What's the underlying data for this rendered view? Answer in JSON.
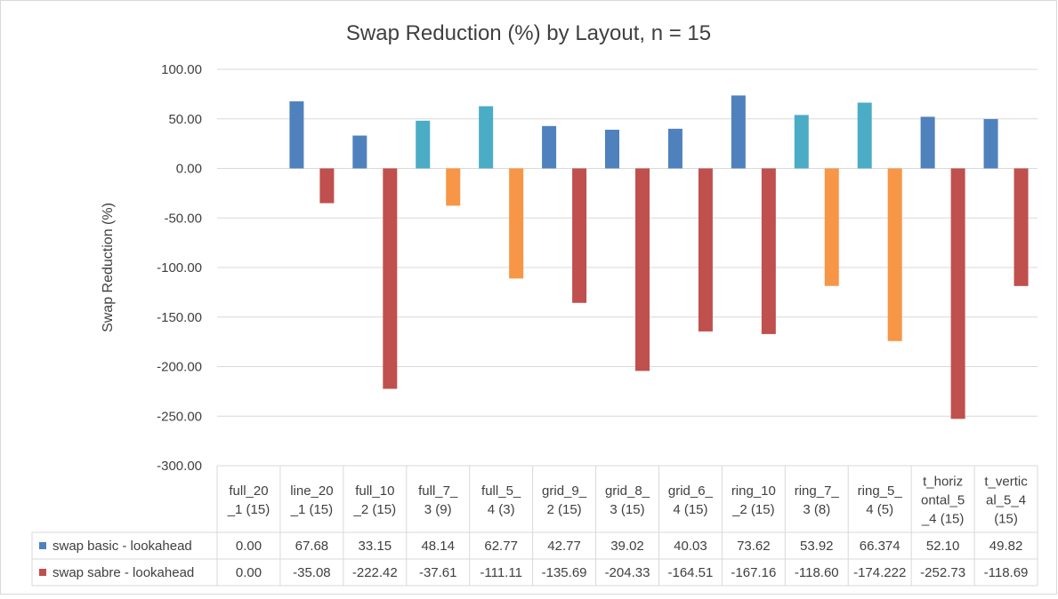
{
  "chart_data": {
    "type": "bar",
    "title": "Swap Reduction (%) by Layout, n = 15",
    "ylabel": "Swap Reduction (%)",
    "xlabel": "",
    "ylim": [
      -300,
      100
    ],
    "ytick_step": 50,
    "ytick_labels": [
      "100.00",
      "50.00",
      "0.00",
      "-50.00",
      "-100.00",
      "-150.00",
      "-200.00",
      "-250.00",
      "-300.00"
    ],
    "grid": true,
    "legend_placement": "data-table",
    "categories": [
      [
        "full_20",
        "_1 (15)"
      ],
      [
        "line_20",
        "_1 (15)"
      ],
      [
        "full_10",
        "_2 (15)"
      ],
      [
        "full_7_",
        "3 (9)"
      ],
      [
        "full_5_",
        "4 (3)"
      ],
      [
        "grid_9_",
        "2 (15)"
      ],
      [
        "grid_8_",
        "3 (15)"
      ],
      [
        "grid_6_",
        "4 (15)"
      ],
      [
        "ring_10",
        "_2 (15)"
      ],
      [
        "ring_7_",
        "3 (8)"
      ],
      [
        "ring_5_",
        "4 (5)"
      ],
      [
        "t_horiz",
        "ontal_5",
        "_4 (15)"
      ],
      [
        "t_vertic",
        "al_5_4",
        "(15)"
      ]
    ],
    "highlighted_categories": [
      3,
      4,
      9,
      10
    ],
    "series": [
      {
        "name": "swap basic - lookahead",
        "color": "#4f81bd",
        "highlight_color": "#4bacc6",
        "values": [
          0.0,
          67.68,
          33.15,
          48.14,
          62.77,
          42.77,
          39.02,
          40.03,
          73.62,
          53.92,
          66.374,
          52.1,
          49.82
        ],
        "labels": [
          "0.00",
          "67.68",
          "33.15",
          "48.14",
          "62.77",
          "42.77",
          "39.02",
          "40.03",
          "73.62",
          "53.92",
          "66.374",
          "52.10",
          "49.82"
        ]
      },
      {
        "name": "swap sabre - lookahead",
        "color": "#c0504d",
        "highlight_color": "#f79646",
        "values": [
          0.0,
          -35.08,
          -222.42,
          -37.61,
          -111.11,
          -135.69,
          -204.33,
          -164.51,
          -167.16,
          -118.6,
          -174.222,
          -252.73,
          -118.69
        ],
        "labels": [
          "0.00",
          "-35.08",
          "-222.42",
          "-37.61",
          "-111.11",
          "-135.69",
          "-204.33",
          "-164.51",
          "-167.16",
          "-118.60",
          "-174.222",
          "-252.73",
          "-118.69"
        ]
      }
    ]
  }
}
